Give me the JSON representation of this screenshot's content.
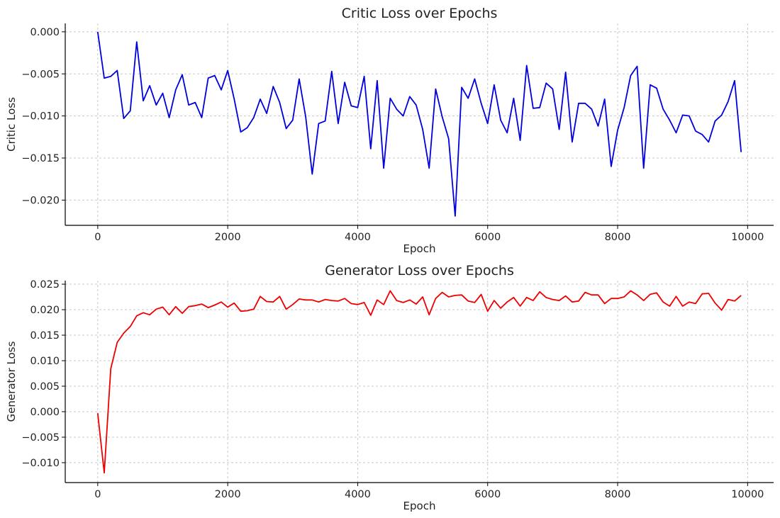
{
  "chart_data": [
    {
      "type": "line",
      "title": "Critic Loss over Epochs",
      "xlabel": "Epoch",
      "ylabel": "Critic Loss",
      "xlim": [
        -500,
        10400
      ],
      "ylim": [
        -0.023,
        0.001
      ],
      "xticks": [
        0,
        2000,
        4000,
        6000,
        8000,
        10000
      ],
      "xtick_labels": [
        "0",
        "2000",
        "4000",
        "6000",
        "8000",
        "10000"
      ],
      "yticks": [
        0.0,
        -0.005,
        -0.01,
        -0.015,
        -0.02
      ],
      "ytick_labels": [
        "0.000",
        "−0.005",
        "−0.010",
        "−0.015",
        "−0.020"
      ],
      "grid": true,
      "color": "#0000dd",
      "x": [
        0,
        100,
        200,
        300,
        400,
        500,
        600,
        700,
        800,
        900,
        1000,
        1100,
        1200,
        1300,
        1400,
        1500,
        1600,
        1700,
        1800,
        1900,
        2000,
        2100,
        2200,
        2300,
        2400,
        2500,
        2600,
        2700,
        2800,
        2900,
        3000,
        3100,
        3200,
        3300,
        3400,
        3500,
        3600,
        3700,
        3800,
        3900,
        4000,
        4100,
        4200,
        4300,
        4400,
        4500,
        4600,
        4700,
        4800,
        4900,
        5000,
        5100,
        5200,
        5300,
        5400,
        5500,
        5600,
        5700,
        5800,
        5900,
        6000,
        6100,
        6200,
        6300,
        6400,
        6500,
        6600,
        6700,
        6800,
        6900,
        7000,
        7100,
        7200,
        7300,
        7400,
        7500,
        7600,
        7700,
        7800,
        7900,
        8000,
        8100,
        8200,
        8300,
        8400,
        8500,
        8600,
        8700,
        8800,
        8900,
        9000,
        9100,
        9200,
        9300,
        9400,
        9500,
        9600,
        9700,
        9800,
        9900
      ],
      "y": [
        0.0,
        -0.0055,
        -0.0053,
        -0.0046,
        -0.0103,
        -0.0094,
        -0.0012,
        -0.0082,
        -0.0064,
        -0.0087,
        -0.0073,
        -0.0102,
        -0.0069,
        -0.0051,
        -0.0087,
        -0.0084,
        -0.0102,
        -0.0055,
        -0.0052,
        -0.0069,
        -0.0046,
        -0.008,
        -0.0119,
        -0.0114,
        -0.0102,
        -0.008,
        -0.0097,
        -0.0065,
        -0.0084,
        -0.0115,
        -0.0105,
        -0.0056,
        -0.0101,
        -0.0169,
        -0.0109,
        -0.0106,
        -0.0047,
        -0.0109,
        -0.006,
        -0.0088,
        -0.009,
        -0.0053,
        -0.0139,
        -0.0058,
        -0.0162,
        -0.0079,
        -0.0092,
        -0.01,
        -0.0077,
        -0.0087,
        -0.0116,
        -0.0162,
        -0.0068,
        -0.0101,
        -0.0127,
        -0.0219,
        -0.0066,
        -0.0079,
        -0.0056,
        -0.0085,
        -0.0109,
        -0.0063,
        -0.0105,
        -0.012,
        -0.0079,
        -0.0129,
        -0.004,
        -0.0091,
        -0.009,
        -0.0061,
        -0.0068,
        -0.0116,
        -0.0048,
        -0.0131,
        -0.0085,
        -0.0085,
        -0.0092,
        -0.0112,
        -0.008,
        -0.016,
        -0.0117,
        -0.009,
        -0.0052,
        -0.0041,
        -0.0162,
        -0.0063,
        -0.0067,
        -0.0092,
        -0.0105,
        -0.012,
        -0.0099,
        -0.01,
        -0.0118,
        -0.0122,
        -0.0131,
        -0.0106,
        -0.0099,
        -0.0083,
        -0.0058,
        -0.0143
      ]
    },
    {
      "type": "line",
      "title": "Generator Loss over Epochs",
      "xlabel": "Epoch",
      "ylabel": "Generator Loss",
      "xlim": [
        -500,
        10400
      ],
      "ylim": [
        -0.0139,
        0.0257
      ],
      "xticks": [
        0,
        2000,
        4000,
        6000,
        8000,
        10000
      ],
      "xtick_labels": [
        "0",
        "2000",
        "4000",
        "6000",
        "8000",
        "10000"
      ],
      "yticks": [
        0.025,
        0.02,
        0.015,
        0.01,
        0.005,
        0.0,
        -0.005,
        -0.01
      ],
      "ytick_labels": [
        "0.025",
        "0.020",
        "0.015",
        "0.010",
        "0.005",
        "0.000",
        "−0.005",
        "−0.010"
      ],
      "grid": true,
      "color": "#ee0000",
      "x": [
        0,
        100,
        200,
        300,
        400,
        500,
        600,
        700,
        800,
        900,
        1000,
        1100,
        1200,
        1300,
        1400,
        1500,
        1600,
        1700,
        1800,
        1900,
        2000,
        2100,
        2200,
        2300,
        2400,
        2500,
        2600,
        2700,
        2800,
        2900,
        3000,
        3100,
        3200,
        3300,
        3400,
        3500,
        3600,
        3700,
        3800,
        3900,
        4000,
        4100,
        4200,
        4300,
        4400,
        4500,
        4600,
        4700,
        4800,
        4900,
        5000,
        5100,
        5200,
        5300,
        5400,
        5500,
        5600,
        5700,
        5800,
        5900,
        6000,
        6100,
        6200,
        6300,
        6400,
        6500,
        6600,
        6700,
        6800,
        6900,
        7000,
        7100,
        7200,
        7300,
        7400,
        7500,
        7600,
        7700,
        7800,
        7900,
        8000,
        8100,
        8200,
        8300,
        8400,
        8500,
        8600,
        8700,
        8800,
        8900,
        9000,
        9100,
        9200,
        9300,
        9400,
        9500,
        9600,
        9700,
        9800,
        9900
      ],
      "y": [
        -0.0003,
        -0.012,
        0.0084,
        0.0136,
        0.0154,
        0.0167,
        0.0188,
        0.0194,
        0.019,
        0.0201,
        0.0205,
        0.019,
        0.0206,
        0.0193,
        0.0206,
        0.0208,
        0.0211,
        0.0204,
        0.0209,
        0.0215,
        0.0205,
        0.0213,
        0.0197,
        0.0198,
        0.0201,
        0.0226,
        0.0216,
        0.0215,
        0.0226,
        0.0201,
        0.021,
        0.0221,
        0.0219,
        0.0219,
        0.0215,
        0.022,
        0.0218,
        0.0217,
        0.0222,
        0.0212,
        0.021,
        0.0214,
        0.0189,
        0.0219,
        0.021,
        0.0237,
        0.0218,
        0.0214,
        0.0219,
        0.0211,
        0.0225,
        0.019,
        0.0222,
        0.0234,
        0.0225,
        0.0228,
        0.0229,
        0.0217,
        0.0214,
        0.023,
        0.0197,
        0.0218,
        0.0203,
        0.0215,
        0.0224,
        0.0207,
        0.0224,
        0.0218,
        0.0235,
        0.0224,
        0.022,
        0.0218,
        0.0227,
        0.0215,
        0.0217,
        0.0234,
        0.0229,
        0.0229,
        0.0212,
        0.0222,
        0.0222,
        0.0225,
        0.0237,
        0.0229,
        0.0218,
        0.023,
        0.0233,
        0.0215,
        0.0207,
        0.0226,
        0.0207,
        0.0215,
        0.0212,
        0.0231,
        0.0232,
        0.0213,
        0.0199,
        0.022,
        0.0217,
        0.0228
      ]
    }
  ]
}
